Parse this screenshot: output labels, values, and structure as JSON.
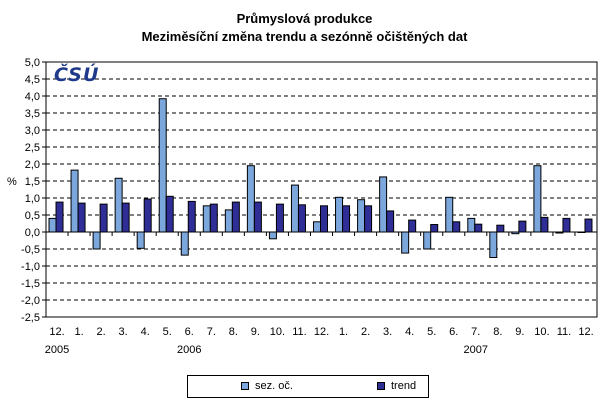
{
  "title": "Průmyslová produkce",
  "subtitle": "Meziměsíční změna trendu a sezónně očištěných dat",
  "logo_text": "ČSÚ",
  "chart_data": {
    "type": "bar",
    "title": "Průmyslová produkce",
    "subtitle": "Meziměsíční změna trendu a sezónně očištěných dat",
    "xlabel": "",
    "ylabel": "%",
    "ylim": [
      -2.5,
      5.0
    ],
    "ytick_step": 0.5,
    "yticks": [
      "5,0",
      "4,5",
      "4,0",
      "3,5",
      "3,0",
      "2,5",
      "2,0",
      "1,5",
      "1,0",
      "0,5",
      "0,0",
      "-0,5",
      "-1,0",
      "-1,5",
      "-2,0",
      "-2,5"
    ],
    "grid": true,
    "legend_position": "bottom",
    "categories": [
      "12.",
      "1.",
      "2.",
      "3.",
      "4.",
      "5.",
      "6.",
      "7.",
      "8.",
      "9.",
      "10.",
      "11.",
      "12.",
      "1.",
      "2.",
      "3.",
      "4.",
      "5.",
      "6.",
      "7.",
      "8.",
      "9.",
      "10.",
      "11.",
      "12."
    ],
    "year_labels": [
      {
        "label": "2005",
        "category_index": 0
      },
      {
        "label": "2006",
        "category_index": 6
      },
      {
        "label": "2007",
        "category_index": 19
      }
    ],
    "series": [
      {
        "name": "sez. oč.",
        "color": "#7ba7dc",
        "values": [
          0.4,
          1.82,
          -0.5,
          1.58,
          -0.48,
          3.92,
          -0.68,
          0.77,
          0.65,
          1.95,
          -0.2,
          1.38,
          0.3,
          1.02,
          0.95,
          1.62,
          -0.62,
          -0.5,
          1.02,
          0.4,
          -0.75,
          -0.05,
          1.95,
          -0.03,
          0.0
        ]
      },
      {
        "name": "trend",
        "color": "#2e2e96",
        "values": [
          0.88,
          0.85,
          0.82,
          0.85,
          0.97,
          1.05,
          0.9,
          0.82,
          0.88,
          0.88,
          0.82,
          0.8,
          0.77,
          0.77,
          0.77,
          0.62,
          0.35,
          0.22,
          0.3,
          0.23,
          0.2,
          0.32,
          0.43,
          0.4,
          0.38
        ]
      }
    ]
  }
}
